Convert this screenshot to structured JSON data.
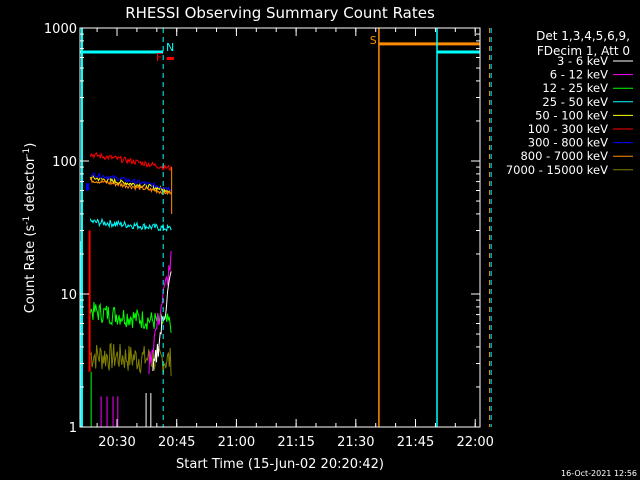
{
  "chart_data": {
    "type": "line",
    "title": "RHESSI Observing Summary Count Rates",
    "xlabel": "Start Time (15-Jun-02 20:20:42)",
    "ylabel_main": "Count Rate (s",
    "ylabel_sup1": "-1",
    "ylabel_mid": " detector",
    "ylabel_sup2": "-1",
    "ylabel_end": ")",
    "y_scale": "log",
    "ylim": [
      1,
      1000
    ],
    "xlim_min": [
      20,
      1200
    ],
    "x_ticks": [
      {
        "min": 1290,
        "label": "20:30"
      },
      {
        "min": 1305,
        "label": "20:45"
      },
      {
        "min": 1320,
        "label": "21:00"
      },
      {
        "min": 1335,
        "label": "21:15"
      },
      {
        "min": 1350,
        "label": "21:30"
      },
      {
        "min": 1365,
        "label": "21:45"
      },
      {
        "min": 1380,
        "label": "22:00"
      }
    ],
    "y_ticks": [
      {
        "v": 1,
        "label": "1"
      },
      {
        "v": 10,
        "label": "10"
      },
      {
        "v": 100,
        "label": "100"
      },
      {
        "v": 1000,
        "label": "1000"
      }
    ],
    "legend_header": [
      "Det 1,3,4,5,6,9,",
      "FDecim 1, Att 0"
    ],
    "series": [
      {
        "name": "3 - 6 keV",
        "color": "#ffffff"
      },
      {
        "name": "6 - 12 keV",
        "color": "#ff00ff"
      },
      {
        "name": "12 - 25 keV",
        "color": "#00ff00"
      },
      {
        "name": "25 - 50 keV",
        "color": "#00ffff"
      },
      {
        "name": "50 - 100 keV",
        "color": "#ffff00"
      },
      {
        "name": "100 - 300 keV",
        "color": "#ff0000"
      },
      {
        "name": "300 - 800 keV",
        "color": "#0000ff"
      },
      {
        "name": "800 - 7000 keV",
        "color": "#ff8c00"
      },
      {
        "name": "7000 - 15000 keV",
        "color": "#808000"
      }
    ],
    "flags": [
      {
        "label": "N",
        "color": "#00ffff"
      },
      {
        "label": "F",
        "color": "#ff0000"
      },
      {
        "label": "S",
        "color": "#ff8c00"
      }
    ],
    "timestamp": "16-Oct-2021 12:56"
  }
}
